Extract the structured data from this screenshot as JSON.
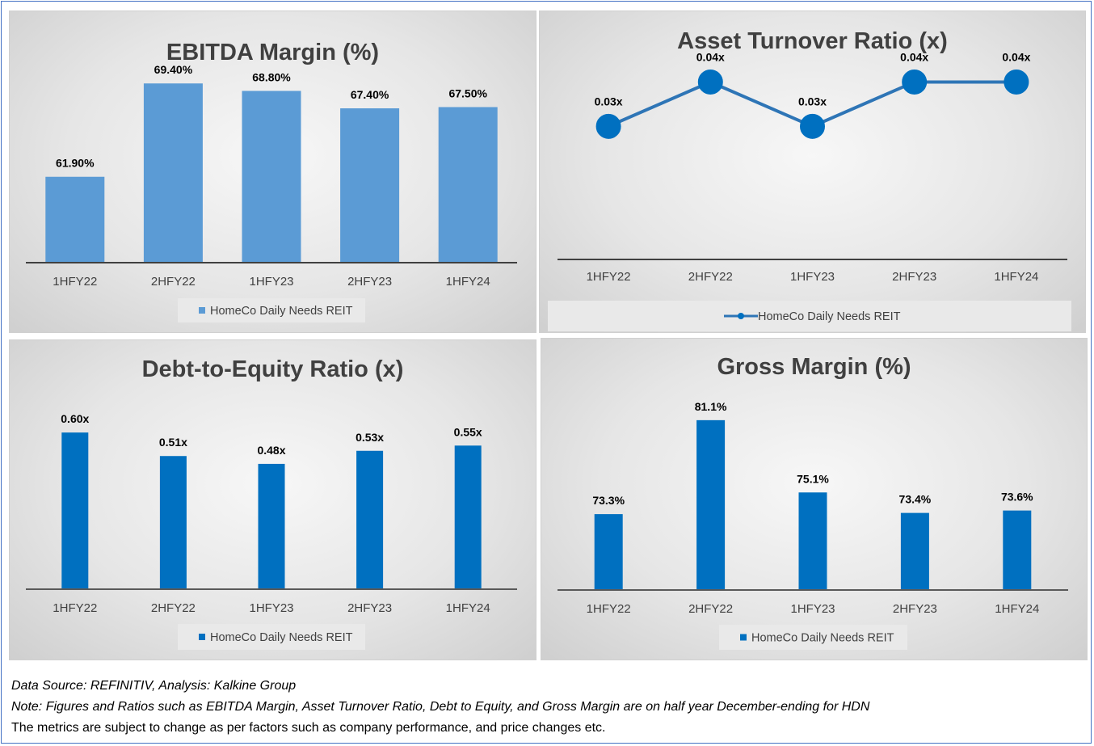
{
  "colors": {
    "bar_light": "#5b9bd5",
    "bar_dark": "#0070c0",
    "line": "#2e75b6",
    "axis": "#404040",
    "frame": "#4472c4"
  },
  "chart_data": [
    {
      "id": "ebitda",
      "type": "bar",
      "title": "EBITDA Margin (%)",
      "categories": [
        "1HFY22",
        "2HFY22",
        "1HFY23",
        "2HFY23",
        "1HFY24"
      ],
      "series": [
        {
          "name": "HomeCo Daily Needs REIT",
          "values": [
            61.9,
            69.4,
            68.8,
            67.4,
            67.5
          ]
        }
      ],
      "data_labels": [
        "61.90%",
        "69.40%",
        "68.80%",
        "67.40%",
        "67.50%"
      ],
      "ylim": [
        55,
        70
      ],
      "grid": false,
      "legend": "bottom",
      "color": "#5b9bd5"
    },
    {
      "id": "asset_turnover",
      "type": "line",
      "title": "Asset Turnover Ratio (x)",
      "categories": [
        "1HFY22",
        "2HFY22",
        "1HFY23",
        "2HFY23",
        "1HFY24"
      ],
      "series": [
        {
          "name": "HomeCo Daily Needs REIT",
          "values": [
            0.03,
            0.04,
            0.03,
            0.04,
            0.04
          ]
        }
      ],
      "data_labels": [
        "0.03x",
        "0.04x",
        "0.03x",
        "0.04x",
        "0.04x"
      ],
      "ylim": [
        0,
        0.045
      ],
      "grid": false,
      "legend": "bottom",
      "color": "#2e75b6"
    },
    {
      "id": "debt_equity",
      "type": "bar",
      "title": "Debt-to-Equity Ratio (x)",
      "categories": [
        "1HFY22",
        "2HFY22",
        "1HFY23",
        "2HFY23",
        "1HFY24"
      ],
      "series": [
        {
          "name": "HomeCo Daily Needs REIT",
          "values": [
            0.6,
            0.51,
            0.48,
            0.53,
            0.55
          ]
        }
      ],
      "data_labels": [
        "0.60x",
        "0.51x",
        "0.48x",
        "0.53x",
        "0.55x"
      ],
      "ylim": [
        0,
        0.65
      ],
      "grid": false,
      "legend": "bottom",
      "color": "#0070c0"
    },
    {
      "id": "gross_margin",
      "type": "bar",
      "title": "Gross Margin (%)",
      "categories": [
        "1HFY22",
        "2HFY22",
        "1HFY23",
        "2HFY23",
        "1HFY24"
      ],
      "series": [
        {
          "name": "HomeCo Daily Needs REIT",
          "values": [
            73.3,
            81.1,
            75.1,
            73.4,
            73.6
          ]
        }
      ],
      "data_labels": [
        "73.3%",
        "81.1%",
        "75.1%",
        "73.4%",
        "73.6%"
      ],
      "ylim": [
        67,
        82.5
      ],
      "grid": false,
      "legend": "bottom",
      "color": "#0070c0"
    }
  ],
  "footnotes": {
    "source": "Data Source: REFINITIV, Analysis: Kalkine Group",
    "note": "Note: Figures and Ratios such as EBITDA Margin, Asset Turnover Ratio, Debt to Equity, and Gross Margin are on half year December-ending for HDN",
    "disclaimer": "The metrics are subject to change as per factors such as company performance, and price changes etc."
  }
}
